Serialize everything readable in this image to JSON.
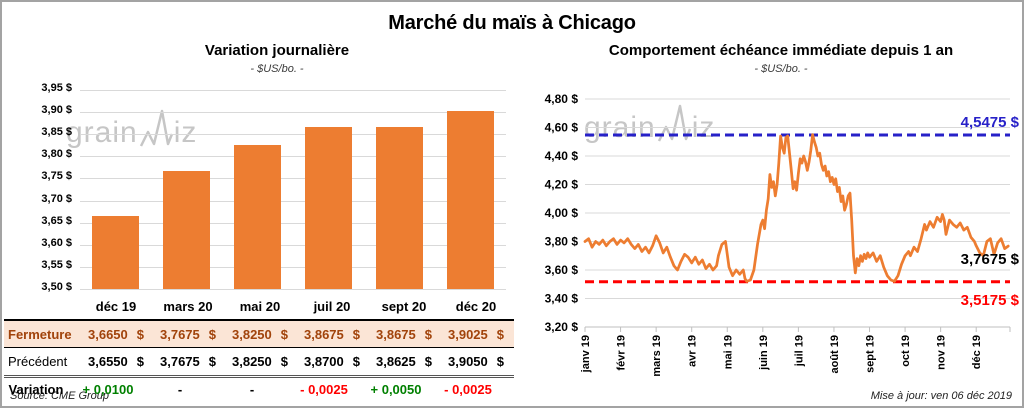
{
  "page": {
    "title": "Marché du maïs à Chicago",
    "source": "Source: CME Group",
    "updated": "Mise à jour: ven 06 déc 2019"
  },
  "left": {
    "title": "Variation journalière",
    "subtitle": "- $US/bo. -"
  },
  "right": {
    "title": "Comportement échéance immédiate depuis 1 an",
    "subtitle": "- $US/bo. -"
  },
  "watermark": {
    "left": "grain",
    "right": "iz"
  },
  "colors": {
    "orange": "#ED7D31",
    "blue": "#2721C8",
    "red": "#FF0000",
    "green": "#008000",
    "grid": "#D9D9D9",
    "axis": "#BFBFBF",
    "watermark": "#C6C6C6",
    "band_bg": "#FBE5D6",
    "band_text": "#A1430B",
    "frame": "#A3A3A3"
  },
  "table": {
    "currency": "$",
    "columns": [
      "déc 19",
      "mars 20",
      "mai 20",
      "juil 20",
      "sept 20",
      "déc 20"
    ],
    "rows": [
      {
        "label": "Fermeture",
        "style": "fermeture",
        "values": [
          "3,6650",
          "3,7675",
          "3,8250",
          "3,8675",
          "3,8675",
          "3,9025"
        ]
      },
      {
        "label": "Précédent",
        "style": "precedent",
        "values": [
          "3,6550",
          "3,7675",
          "3,8250",
          "3,8700",
          "3,8625",
          "3,9050"
        ]
      },
      {
        "label": "Variation",
        "style": "variation",
        "values": [
          {
            "text": "+ 0,0100",
            "tone": "up"
          },
          {
            "text": "-",
            "tone": "flat"
          },
          {
            "text": "-",
            "tone": "flat"
          },
          {
            "text": "- 0,0025",
            "tone": "down"
          },
          {
            "text": "+ 0,0050",
            "tone": "up"
          },
          {
            "text": "- 0,0025",
            "tone": "down"
          }
        ]
      }
    ]
  },
  "chart_data": [
    {
      "type": "bar",
      "title": "Variation journalière",
      "subtitle": "- $US/bo. -",
      "categories": [
        "déc 19",
        "mars 20",
        "mai 20",
        "juil 20",
        "sept 20",
        "déc 20"
      ],
      "values": [
        3.665,
        3.7675,
        3.825,
        3.8675,
        3.8675,
        3.9025
      ],
      "ylim": [
        3.5,
        3.95
      ],
      "ytick_step": 0.05,
      "ytick_labels": [
        "3,95 $",
        "3,90 $",
        "3,85 $",
        "3,80 $",
        "3,75 $",
        "3,70 $",
        "3,65 $",
        "3,60 $",
        "3,55 $",
        "3,50 $"
      ],
      "bar_color": "#ED7D31",
      "grid": true
    },
    {
      "type": "line",
      "title": "Comportement échéance immédiate depuis 1 an",
      "subtitle": "- $US/bo. -",
      "x_labels": [
        "janv 19",
        "févr 19",
        "mars 19",
        "avr 19",
        "mai 19",
        "juin 19",
        "juil 19",
        "août 19",
        "sept 19",
        "oct 19",
        "nov 19",
        "déc 19"
      ],
      "ylim": [
        3.2,
        4.8
      ],
      "ytick_step": 0.2,
      "ytick_labels": [
        "4,80 $",
        "4,60 $",
        "4,40 $",
        "4,20 $",
        "4,00 $",
        "3,80 $",
        "3,60 $",
        "3,40 $",
        "3,20 $"
      ],
      "line_color": "#ED7D31",
      "grid": true,
      "ref_lines": [
        {
          "value": 4.5475,
          "label": "4,5475 $",
          "color": "#2721C8"
        },
        {
          "value": 3.5175,
          "label": "3,5175 $",
          "color": "#FF0000"
        }
      ],
      "last_point_label": {
        "value": 3.7675,
        "label": "3,7675 $",
        "color": "#000000"
      },
      "points": [
        [
          0.0,
          3.8
        ],
        [
          0.1,
          3.82
        ],
        [
          0.2,
          3.76
        ],
        [
          0.3,
          3.8
        ],
        [
          0.4,
          3.78
        ],
        [
          0.5,
          3.81
        ],
        [
          0.6,
          3.77
        ],
        [
          0.7,
          3.8
        ],
        [
          0.8,
          3.82
        ],
        [
          0.9,
          3.78
        ],
        [
          1.0,
          3.81
        ],
        [
          1.1,
          3.79
        ],
        [
          1.2,
          3.82
        ],
        [
          1.3,
          3.78
        ],
        [
          1.4,
          3.75
        ],
        [
          1.5,
          3.78
        ],
        [
          1.6,
          3.73
        ],
        [
          1.7,
          3.76
        ],
        [
          1.8,
          3.72
        ],
        [
          1.9,
          3.77
        ],
        [
          2.0,
          3.84
        ],
        [
          2.1,
          3.79
        ],
        [
          2.2,
          3.72
        ],
        [
          2.3,
          3.76
        ],
        [
          2.4,
          3.69
        ],
        [
          2.5,
          3.63
        ],
        [
          2.6,
          3.6
        ],
        [
          2.7,
          3.66
        ],
        [
          2.8,
          3.71
        ],
        [
          2.9,
          3.69
        ],
        [
          3.0,
          3.65
        ],
        [
          3.1,
          3.69
        ],
        [
          3.2,
          3.64
        ],
        [
          3.3,
          3.67
        ],
        [
          3.4,
          3.61
        ],
        [
          3.5,
          3.64
        ],
        [
          3.6,
          3.6
        ],
        [
          3.7,
          3.63
        ],
        [
          3.75,
          3.7
        ],
        [
          3.85,
          3.78
        ],
        [
          3.95,
          3.8
        ],
        [
          4.05,
          3.62
        ],
        [
          4.15,
          3.56
        ],
        [
          4.25,
          3.6
        ],
        [
          4.35,
          3.57
        ],
        [
          4.45,
          3.6
        ],
        [
          4.5,
          3.54
        ],
        [
          4.55,
          3.52
        ],
        [
          4.65,
          3.53
        ],
        [
          4.75,
          3.6
        ],
        [
          4.85,
          3.78
        ],
        [
          4.95,
          3.92
        ],
        [
          5.0,
          3.95
        ],
        [
          5.05,
          3.89
        ],
        [
          5.1,
          4.02
        ],
        [
          5.15,
          4.1
        ],
        [
          5.2,
          4.27
        ],
        [
          5.25,
          4.18
        ],
        [
          5.3,
          4.22
        ],
        [
          5.35,
          4.12
        ],
        [
          5.4,
          4.2
        ],
        [
          5.45,
          4.35
        ],
        [
          5.5,
          4.54
        ],
        [
          5.55,
          4.46
        ],
        [
          5.6,
          4.42
        ],
        [
          5.65,
          4.53
        ],
        [
          5.7,
          4.54
        ],
        [
          5.75,
          4.42
        ],
        [
          5.8,
          4.3
        ],
        [
          5.85,
          4.17
        ],
        [
          5.9,
          4.22
        ],
        [
          5.95,
          4.16
        ],
        [
          6.0,
          4.28
        ],
        [
          6.05,
          4.38
        ],
        [
          6.1,
          4.35
        ],
        [
          6.15,
          4.4
        ],
        [
          6.2,
          4.36
        ],
        [
          6.25,
          4.3
        ],
        [
          6.3,
          4.36
        ],
        [
          6.35,
          4.44
        ],
        [
          6.4,
          4.55
        ],
        [
          6.45,
          4.5
        ],
        [
          6.5,
          4.46
        ],
        [
          6.55,
          4.4
        ],
        [
          6.6,
          4.42
        ],
        [
          6.65,
          4.34
        ],
        [
          6.7,
          4.3
        ],
        [
          6.75,
          4.33
        ],
        [
          6.8,
          4.26
        ],
        [
          6.85,
          4.29
        ],
        [
          6.9,
          4.22
        ],
        [
          6.95,
          4.25
        ],
        [
          7.0,
          4.2
        ],
        [
          7.05,
          4.24
        ],
        [
          7.1,
          4.15
        ],
        [
          7.15,
          4.18
        ],
        [
          7.2,
          4.08
        ],
        [
          7.25,
          4.12
        ],
        [
          7.3,
          4.02
        ],
        [
          7.35,
          4.06
        ],
        [
          7.4,
          4.12
        ],
        [
          7.45,
          4.14
        ],
        [
          7.5,
          3.95
        ],
        [
          7.55,
          3.7
        ],
        [
          7.6,
          3.58
        ],
        [
          7.65,
          3.68
        ],
        [
          7.7,
          3.63
        ],
        [
          7.75,
          3.7
        ],
        [
          7.8,
          3.66
        ],
        [
          7.85,
          3.71
        ],
        [
          7.9,
          3.68
        ],
        [
          7.95,
          3.72
        ],
        [
          8.0,
          3.69
        ],
        [
          8.1,
          3.72
        ],
        [
          8.2,
          3.66
        ],
        [
          8.3,
          3.7
        ],
        [
          8.4,
          3.62
        ],
        [
          8.5,
          3.56
        ],
        [
          8.6,
          3.53
        ],
        [
          8.7,
          3.52
        ],
        [
          8.8,
          3.56
        ],
        [
          8.9,
          3.64
        ],
        [
          9.0,
          3.7
        ],
        [
          9.1,
          3.73
        ],
        [
          9.15,
          3.7
        ],
        [
          9.25,
          3.76
        ],
        [
          9.35,
          3.73
        ],
        [
          9.45,
          3.82
        ],
        [
          9.55,
          3.92
        ],
        [
          9.6,
          3.88
        ],
        [
          9.7,
          3.94
        ],
        [
          9.8,
          3.9
        ],
        [
          9.9,
          3.97
        ],
        [
          10.0,
          3.94
        ],
        [
          10.05,
          3.99
        ],
        [
          10.1,
          3.95
        ],
        [
          10.15,
          3.85
        ],
        [
          10.25,
          3.95
        ],
        [
          10.35,
          3.92
        ],
        [
          10.45,
          3.9
        ],
        [
          10.55,
          3.93
        ],
        [
          10.65,
          3.88
        ],
        [
          10.75,
          3.9
        ],
        [
          10.85,
          3.83
        ],
        [
          10.95,
          3.8
        ],
        [
          11.0,
          3.77
        ],
        [
          11.1,
          3.72
        ],
        [
          11.2,
          3.7
        ],
        [
          11.3,
          3.8
        ],
        [
          11.4,
          3.82
        ],
        [
          11.5,
          3.71
        ],
        [
          11.6,
          3.79
        ],
        [
          11.7,
          3.82
        ],
        [
          11.8,
          3.75
        ],
        [
          11.9,
          3.7675
        ]
      ]
    }
  ]
}
